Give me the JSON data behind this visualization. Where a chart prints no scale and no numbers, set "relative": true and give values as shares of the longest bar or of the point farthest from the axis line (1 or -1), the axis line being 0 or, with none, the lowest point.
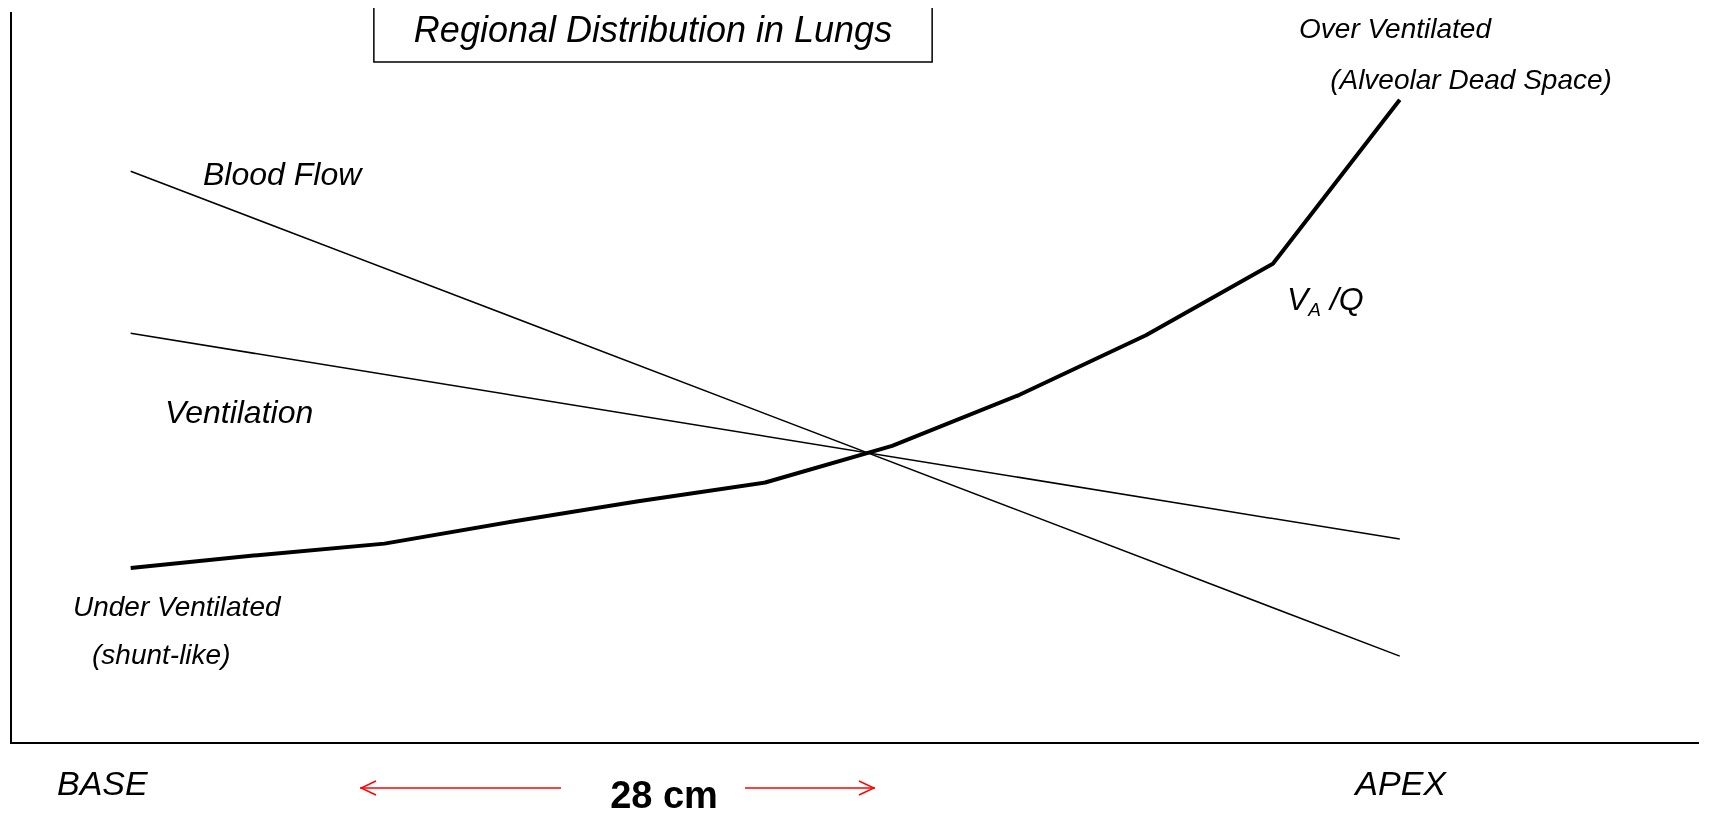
{
  "chart_data": {
    "type": "line",
    "title": "Regional Distribution in Lungs",
    "relative": true,
    "marker": "none",
    "categories": [
      null,
      null,
      null,
      null,
      null,
      null,
      null,
      null,
      null,
      null,
      null
    ],
    "series": [
      {
        "name": "Blood Flow",
        "color": "#000000",
        "values": [
          0.889,
          null,
          null,
          null,
          null,
          null,
          null,
          null,
          null,
          null,
          0.135
        ]
      },
      {
        "name": "Ventilation",
        "color": "#000000",
        "values": [
          0.637,
          null,
          null,
          null,
          null,
          null,
          null,
          null,
          null,
          null,
          0.317
        ]
      },
      {
        "name": "V$_{A}$ /Q",
        "color": "#000000",
        "values": [
          0.272,
          0.292,
          0.31,
          0.344,
          0.376,
          0.405,
          0.462,
          0.541,
          0.634,
          0.745,
          1
        ]
      }
    ],
    "annotations": [
      "Over Ventilated",
      "(Alveolar Dead Space)",
      "Under Ventilated",
      "(shunt-like)",
      "BASE",
      "28 cm",
      "APEX"
    ]
  }
}
